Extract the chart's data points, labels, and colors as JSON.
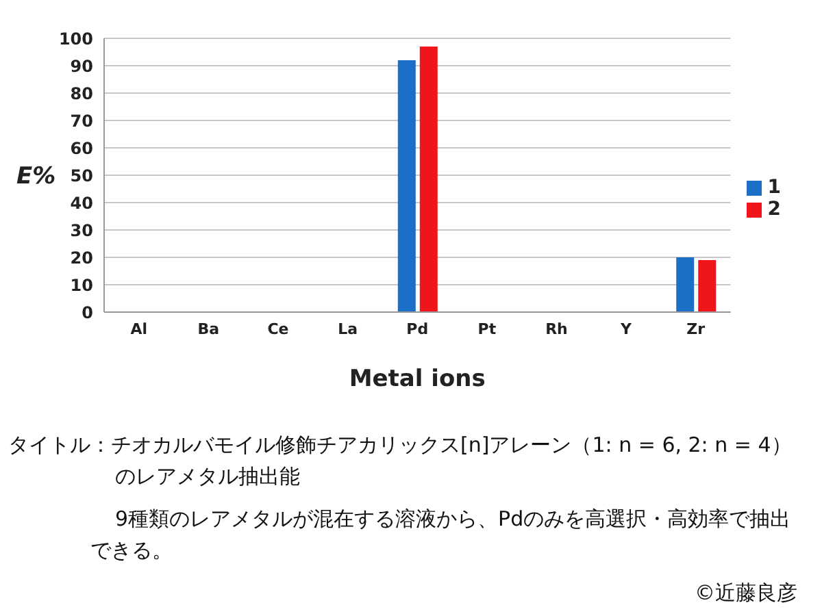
{
  "chart_data": {
    "type": "bar",
    "title": "タイトル：チオカルバモイル修飾チアカリックス[n]アレーン（1: n = 6, 2: n = 4）のレアメタル抽出能",
    "xlabel": "Metal ions",
    "ylabel": "E%",
    "categories": [
      "Al",
      "Ba",
      "Ce",
      "La",
      "Pd",
      "Pt",
      "Rh",
      "Y",
      "Zr"
    ],
    "series": [
      {
        "name": "1",
        "color": "#1c6fc6",
        "values": [
          0,
          0,
          0,
          0,
          92,
          0,
          0,
          0,
          20
        ]
      },
      {
        "name": "2",
        "color": "#f0151a",
        "values": [
          0,
          0,
          0,
          0,
          97,
          0,
          0,
          0,
          19
        ]
      }
    ],
    "ylim": [
      0,
      100
    ],
    "yticks": [
      0,
      10,
      20,
      30,
      40,
      50,
      60,
      70,
      80,
      90,
      100
    ],
    "grid": "y",
    "legend": "right",
    "annotations": [
      "9種類のレアメタルが混在する溶液から、Pdのみを高選択・高効率で抽出できる。",
      "©近藤良彦"
    ]
  }
}
